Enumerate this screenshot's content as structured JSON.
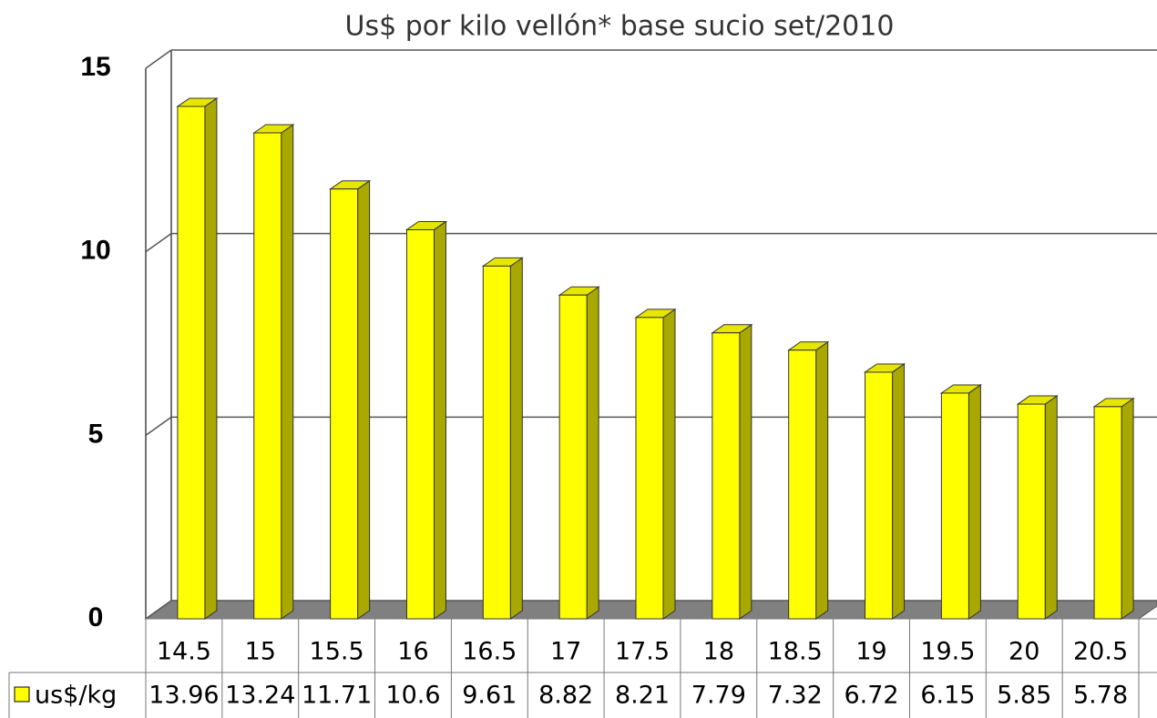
{
  "chart_data": {
    "type": "bar3d",
    "title": "Us$ por kilo vellón* base sucio  set/2010",
    "categories": [
      "14.5",
      "15",
      "15.5",
      "16",
      "16.5",
      "17",
      "17.5",
      "18",
      "18.5",
      "19",
      "19.5",
      "20",
      "20.5"
    ],
    "series": [
      {
        "name": "us$/kg",
        "color": "#ffff00",
        "values": [
          13.96,
          13.24,
          11.71,
          10.6,
          9.61,
          8.82,
          8.21,
          7.79,
          7.32,
          6.72,
          6.15,
          5.85,
          5.78
        ]
      }
    ],
    "ylim": [
      0,
      15
    ],
    "yticks": [
      0,
      5,
      10,
      15
    ],
    "grid": true
  }
}
